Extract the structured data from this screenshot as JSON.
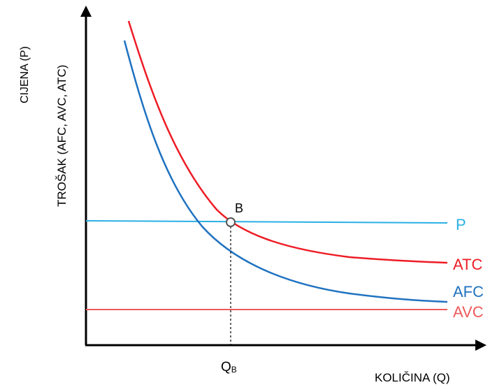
{
  "y_axis": {
    "label_line1": "CIJENA (P)",
    "label_line2": "TROŠAK (AFC, AVC, ATC)"
  },
  "x_axis": {
    "label": "KOLIČINA (Q)"
  },
  "point": {
    "label": "B",
    "q_label_main": "Q",
    "q_label_sub": "B"
  },
  "curves": {
    "p": {
      "label": "P",
      "color": "#2ab0e4"
    },
    "atc": {
      "label": "ATC",
      "color": "#ee1c25"
    },
    "afc": {
      "label": "AFC",
      "color": "#1f72c0"
    },
    "avc": {
      "label": "AVC",
      "color": "#f0595a"
    }
  },
  "axis_color": "#000000"
}
